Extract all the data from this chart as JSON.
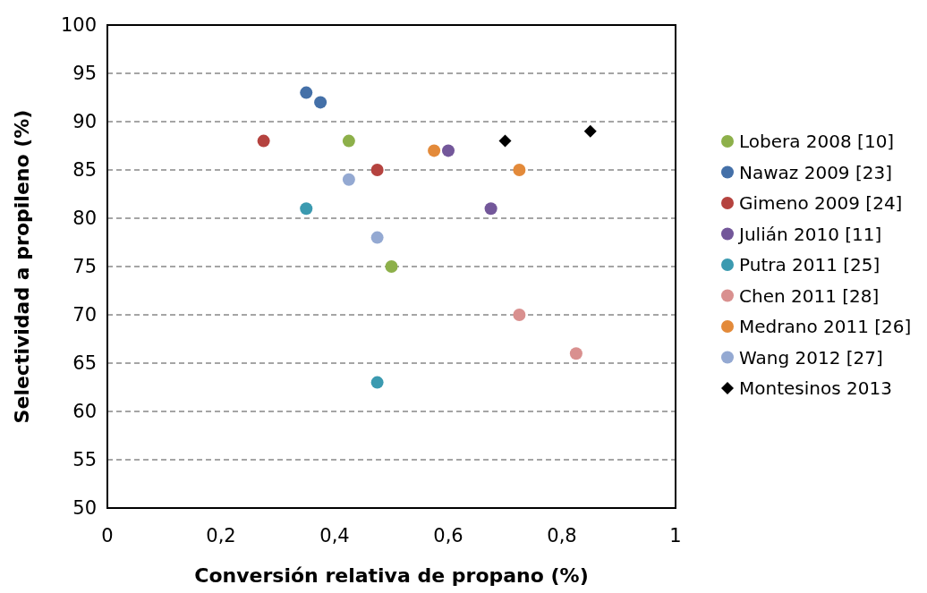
{
  "chart_data": {
    "type": "scatter",
    "xlabel": "Conversión relativa de propano (%)",
    "ylabel": "Selectividad a propileno (%)",
    "xlim": [
      0,
      1
    ],
    "xticks": [
      0,
      {
        "value": 0.2,
        "label": "0,2"
      },
      {
        "value": 0.4,
        "label": "0,4"
      },
      {
        "value": 0.6,
        "label": "0,6"
      },
      {
        "value": 0.8,
        "label": "0,8"
      },
      1
    ],
    "ylim": [
      50,
      100
    ],
    "yticks": [
      50,
      55,
      60,
      65,
      70,
      75,
      80,
      85,
      90,
      95,
      100
    ],
    "grid": "y",
    "legend": "right",
    "marker": "circle",
    "series": [
      {
        "name": "Lobera 2008 [10]",
        "color": "#8db04a",
        "x": [
          0.425,
          0.5
        ],
        "values": [
          88,
          75
        ]
      },
      {
        "name": "Nawaz 2009 [23]",
        "color": "#4470a8",
        "x": [
          0.35,
          0.375
        ],
        "values": [
          93,
          92
        ]
      },
      {
        "name": "Gimeno 2009 [24]",
        "color": "#b5433f",
        "x": [
          0.275,
          0.475
        ],
        "values": [
          88,
          85
        ]
      },
      {
        "name": "Julián 2010 [11]",
        "color": "#73579a",
        "x": [
          0.6,
          0.675
        ],
        "values": [
          87,
          81
        ]
      },
      {
        "name": "Putra 2011 [25]",
        "color": "#3b9ab0",
        "x": [
          0.35,
          0.475
        ],
        "values": [
          81,
          63
        ]
      },
      {
        "name": "Chen 2011 [28]",
        "color": "#d9908f",
        "x": [
          0.725,
          0.825
        ],
        "values": [
          70,
          66
        ]
      },
      {
        "name": "Medrano 2011 [26]",
        "color": "#e38a3a",
        "x": [
          0.575,
          0.725
        ],
        "values": [
          87,
          85
        ]
      },
      {
        "name": "Wang 2012 [27]",
        "color": "#94a9d2",
        "x": [
          0.425,
          0.475
        ],
        "values": [
          84,
          78
        ]
      },
      {
        "name": "Montesinos 2013",
        "color": "#000000",
        "marker": "diamond",
        "x": [
          0.7,
          0.85
        ],
        "values": [
          88,
          89
        ]
      }
    ]
  }
}
